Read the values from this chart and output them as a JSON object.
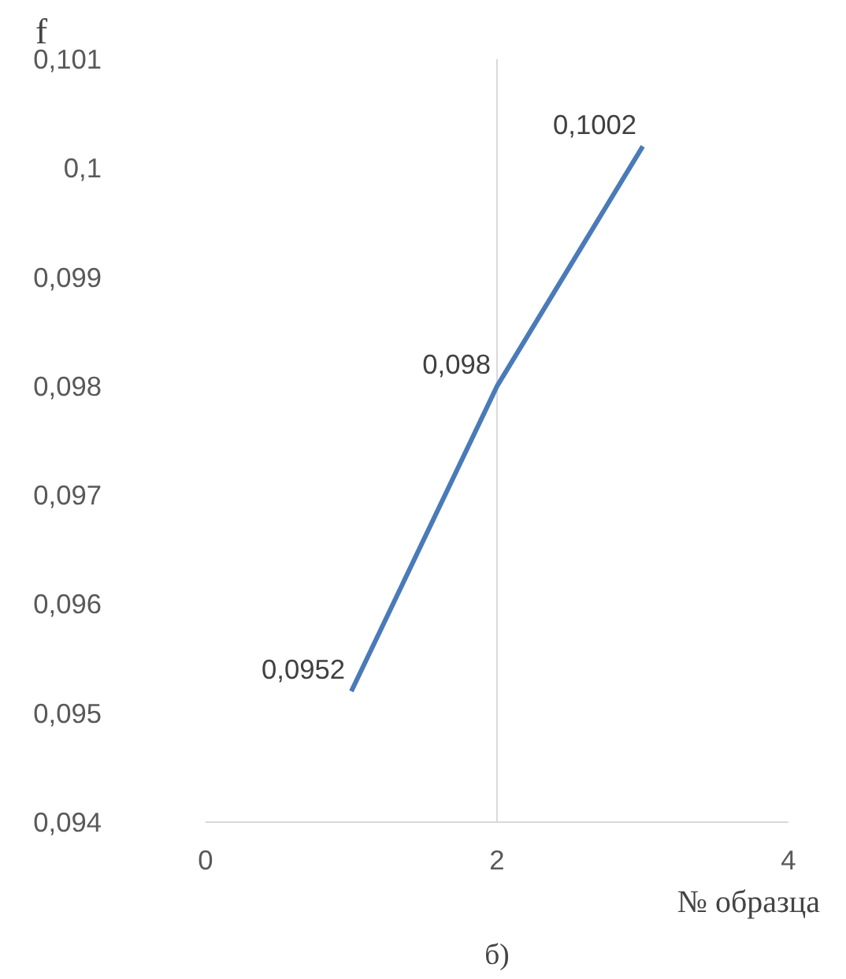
{
  "chart_data": {
    "type": "line",
    "xlabel": "№ образца",
    "ylabel": "f",
    "x": [
      1,
      2,
      3
    ],
    "series": [
      {
        "color": "#4a7ab8",
        "values": [
          0.0952,
          0.098,
          0.1002
        ],
        "value_labels": [
          "0,0952",
          "0,098",
          "0,1002"
        ]
      }
    ],
    "xlim": [
      0,
      4
    ],
    "ylim": [
      0.094,
      0.101
    ],
    "xticks": [
      0,
      2,
      4
    ],
    "yticks": [
      {
        "value": 0.094,
        "label": "0,094"
      },
      {
        "value": 0.095,
        "label": "0,095"
      },
      {
        "value": 0.096,
        "label": "0,096"
      },
      {
        "value": 0.097,
        "label": "0,097"
      },
      {
        "value": 0.098,
        "label": "0,098"
      },
      {
        "value": 0.099,
        "label": "0,099"
      },
      {
        "value": 0.1,
        "label": "0,1"
      },
      {
        "value": 0.101,
        "label": "0,101"
      }
    ],
    "grid": "x",
    "marker": "none",
    "line_style": "solid",
    "annotations": [
      "б)"
    ]
  }
}
